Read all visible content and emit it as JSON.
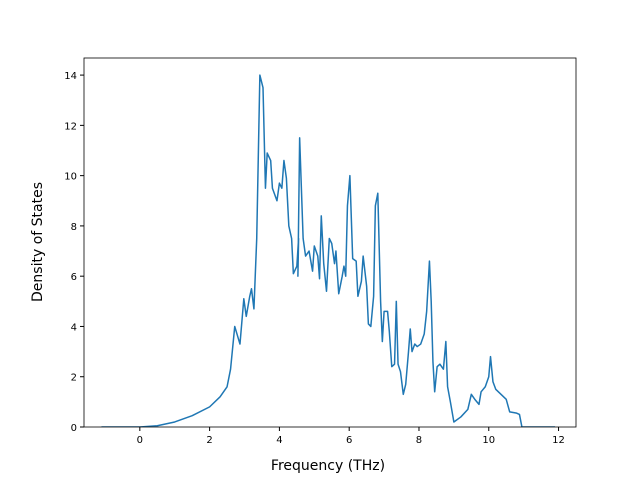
{
  "chart_data": {
    "type": "line",
    "x_label": "Frequency (THz)",
    "y_label": "Density of States",
    "xlim": [
      -1.6,
      12.5
    ],
    "ylim": [
      0,
      14.68
    ],
    "xticks": [
      0,
      2,
      4,
      6,
      8,
      10,
      12
    ],
    "yticks": [
      0,
      2,
      4,
      6,
      8,
      10,
      12,
      14
    ],
    "series": [
      {
        "color": "#1f77b4",
        "x": [
          -1.1,
          0,
          0.5,
          1.0,
          1.5,
          2.0,
          2.3,
          2.5,
          2.6,
          2.72,
          2.87,
          2.98,
          3.05,
          3.15,
          3.2,
          3.27,
          3.35,
          3.44,
          3.53,
          3.6,
          3.65,
          3.75,
          3.8,
          3.93,
          4.0,
          4.07,
          4.13,
          4.2,
          4.27,
          4.35,
          4.4,
          4.5,
          4.55,
          4.53,
          4.58,
          4.68,
          4.75,
          4.85,
          4.95,
          5.0,
          5.1,
          5.15,
          5.2,
          5.27,
          5.35,
          5.43,
          5.5,
          5.58,
          5.62,
          5.7,
          5.8,
          5.85,
          5.9,
          5.95,
          6.02,
          6.1,
          6.2,
          6.25,
          6.35,
          6.4,
          6.5,
          6.55,
          6.62,
          6.7,
          6.75,
          6.82,
          6.9,
          6.95,
          7.0,
          7.1,
          7.15,
          7.22,
          7.3,
          7.35,
          7.4,
          7.47,
          7.55,
          7.62,
          7.7,
          7.75,
          7.8,
          7.88,
          7.95,
          8.05,
          8.15,
          8.22,
          8.3,
          8.35,
          8.4,
          8.45,
          8.52,
          8.6,
          8.7,
          8.77,
          8.82,
          8.9,
          9.0,
          9.2,
          9.4,
          9.5,
          9.6,
          9.72,
          9.78,
          9.9,
          10.0,
          10.05,
          10.12,
          10.2,
          10.35,
          10.5,
          10.6,
          10.8,
          10.88,
          10.95,
          11.9
        ],
        "values": [
          0,
          0,
          0.05,
          0.2,
          0.45,
          0.8,
          1.2,
          1.6,
          2.3,
          4.0,
          3.3,
          5.1,
          4.4,
          5.2,
          5.5,
          4.7,
          7.5,
          14.0,
          13.5,
          9.5,
          10.9,
          10.6,
          9.5,
          9.0,
          9.7,
          9.5,
          10.6,
          9.9,
          8.0,
          7.5,
          6.1,
          6.4,
          7.5,
          6.0,
          11.5,
          7.5,
          6.8,
          7.0,
          6.2,
          7.2,
          6.8,
          5.9,
          8.4,
          6.5,
          5.4,
          7.5,
          7.3,
          6.5,
          7.0,
          5.3,
          6.0,
          6.4,
          6.0,
          8.8,
          10.0,
          6.7,
          6.6,
          5.2,
          5.8,
          6.8,
          5.6,
          4.1,
          4.0,
          5.2,
          8.8,
          9.3,
          5.0,
          3.4,
          4.6,
          4.6,
          3.8,
          2.4,
          2.5,
          5.0,
          2.5,
          2.2,
          1.3,
          1.7,
          3.0,
          3.9,
          3.0,
          3.3,
          3.2,
          3.3,
          3.7,
          4.6,
          6.6,
          5.0,
          2.6,
          1.4,
          2.4,
          2.5,
          2.3,
          3.4,
          1.6,
          1.0,
          0.2,
          0.4,
          0.7,
          1.3,
          1.1,
          0.9,
          1.4,
          1.6,
          2.0,
          2.8,
          1.8,
          1.5,
          1.3,
          1.1,
          0.6,
          0.55,
          0.5,
          0,
          0
        ]
      }
    ]
  }
}
